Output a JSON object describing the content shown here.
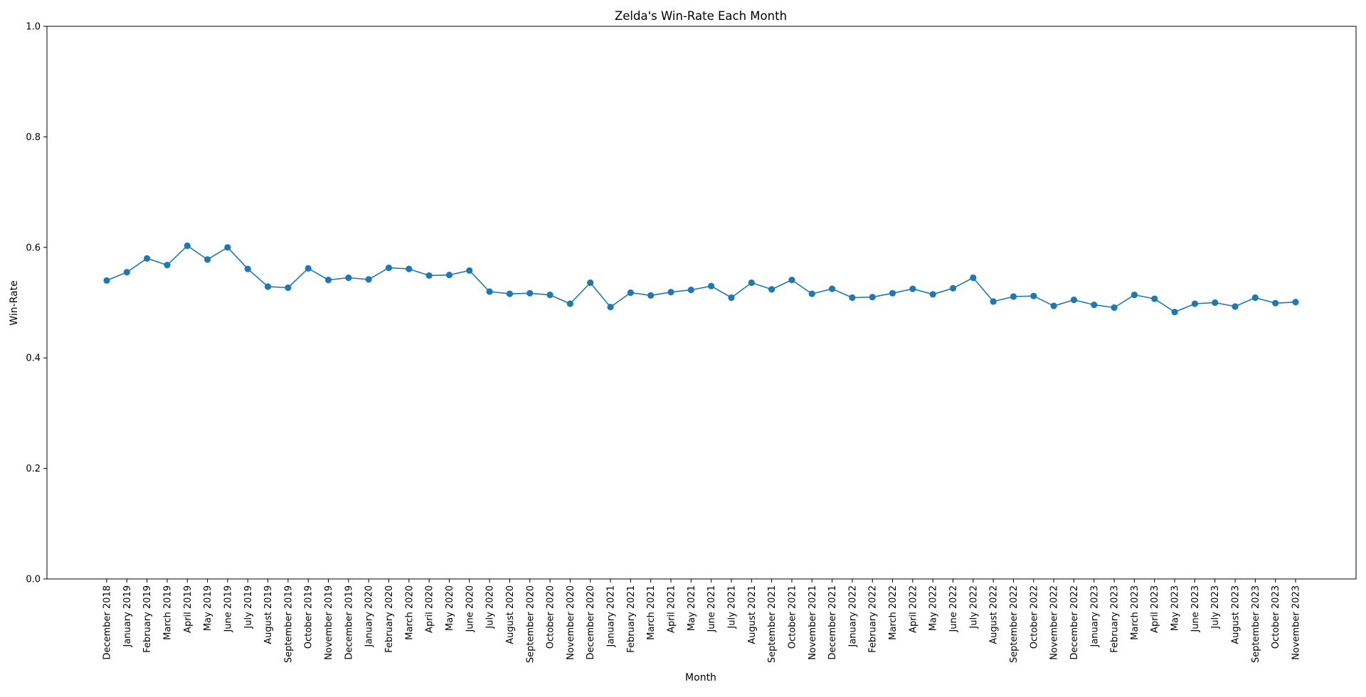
{
  "chart_data": {
    "type": "line",
    "title": "Zelda's Win-Rate Each Month",
    "xlabel": "Month",
    "ylabel": "Win-Rate",
    "ylim": [
      0,
      1
    ],
    "yticks": [
      "0.0",
      "0.2",
      "0.4",
      "0.6",
      "0.8",
      "1.0"
    ],
    "grid": false,
    "legend": "none",
    "color": "#1f77b4",
    "marker": "circle",
    "categories": [
      "December 2018",
      "January 2019",
      "February 2019",
      "March 2019",
      "April 2019",
      "May 2019",
      "June 2019",
      "July 2019",
      "August 2019",
      "September 2019",
      "October 2019",
      "November 2019",
      "December 2019",
      "January 2020",
      "February 2020",
      "March 2020",
      "April 2020",
      "May 2020",
      "June 2020",
      "July 2020",
      "August 2020",
      "September 2020",
      "October 2020",
      "November 2020",
      "December 2020",
      "January 2021",
      "February 2021",
      "March 2021",
      "April 2021",
      "May 2021",
      "June 2021",
      "July 2021",
      "August 2021",
      "September 2021",
      "October 2021",
      "November 2021",
      "December 2021",
      "January 2022",
      "February 2022",
      "March 2022",
      "April 2022",
      "May 2022",
      "June 2022",
      "July 2022",
      "August 2022",
      "September 2022",
      "October 2022",
      "November 2022",
      "December 2022",
      "January 2023",
      "February 2023",
      "March 2023",
      "April 2023",
      "May 2023",
      "June 2023",
      "July 2023",
      "August 2023",
      "September 2023",
      "October 2023",
      "November 2023"
    ],
    "values": [
      0.54,
      0.555,
      0.58,
      0.568,
      0.603,
      0.578,
      0.6,
      0.561,
      0.529,
      0.527,
      0.562,
      0.541,
      0.545,
      0.542,
      0.563,
      0.561,
      0.549,
      0.55,
      0.558,
      0.52,
      0.516,
      0.517,
      0.514,
      0.498,
      0.536,
      0.492,
      0.518,
      0.513,
      0.519,
      0.523,
      0.53,
      0.509,
      0.536,
      0.524,
      0.541,
      0.516,
      0.525,
      0.509,
      0.51,
      0.517,
      0.525,
      0.515,
      0.526,
      0.545,
      0.502,
      0.511,
      0.512,
      0.494,
      0.505,
      0.496,
      0.491,
      0.514,
      0.507,
      0.483,
      0.498,
      0.5,
      0.493,
      0.509,
      0.499,
      0.501
    ]
  }
}
